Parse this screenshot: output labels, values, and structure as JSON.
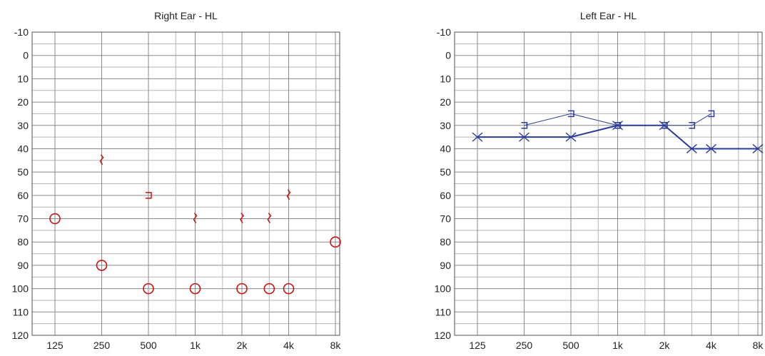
{
  "chart_data": [
    {
      "type": "scatter",
      "title": "Right Ear - HL",
      "xlabel": "",
      "ylabel": "",
      "x_categories": [
        "125",
        "250",
        "500",
        "1k",
        "2k",
        "4k",
        "8k"
      ],
      "y_ticks": [
        -10,
        0,
        10,
        20,
        30,
        40,
        50,
        60,
        70,
        80,
        90,
        100,
        110,
        120
      ],
      "ylim": [
        -10,
        120
      ],
      "y_inverted": true,
      "grid": true,
      "line_color": "#cc1111",
      "series": [
        {
          "marker": "circle",
          "points": [
            {
              "f": 125,
              "db": 70
            },
            {
              "f": 250,
              "db": 90
            },
            {
              "f": 500,
              "db": 100
            },
            {
              "f": 1000,
              "db": 100
            },
            {
              "f": 2000,
              "db": 100
            },
            {
              "f": 3000,
              "db": 100
            },
            {
              "f": 4000,
              "db": 100
            },
            {
              "f": 8000,
              "db": 80
            }
          ]
        },
        {
          "marker": "bone-bracket",
          "points": [
            {
              "f": 500,
              "db": 60
            }
          ]
        },
        {
          "marker": "bone-squiggle",
          "points": [
            {
              "f": 250,
              "db": 45
            },
            {
              "f": 1000,
              "db": 70
            },
            {
              "f": 2000,
              "db": 70
            },
            {
              "f": 3000,
              "db": 70
            },
            {
              "f": 4000,
              "db": 60
            }
          ]
        }
      ]
    },
    {
      "type": "line",
      "title": "Left Ear - HL",
      "xlabel": "",
      "ylabel": "",
      "x_categories": [
        "125",
        "250",
        "500",
        "1k",
        "2k",
        "4k",
        "8k"
      ],
      "y_ticks": [
        -10,
        0,
        10,
        20,
        30,
        40,
        50,
        60,
        70,
        80,
        90,
        100,
        110,
        120
      ],
      "ylim": [
        -10,
        120
      ],
      "y_inverted": true,
      "grid": true,
      "line_color": "#2a3a9a",
      "series": [
        {
          "marker": "x",
          "connected": true,
          "points": [
            {
              "f": 125,
              "db": 35
            },
            {
              "f": 250,
              "db": 35
            },
            {
              "f": 500,
              "db": 35
            },
            {
              "f": 1000,
              "db": 30
            },
            {
              "f": 2000,
              "db": 30
            },
            {
              "f": 3000,
              "db": 40
            },
            {
              "f": 4000,
              "db": 40
            },
            {
              "f": 8000,
              "db": 40
            }
          ]
        },
        {
          "marker": "bone-bracket",
          "connected": true,
          "points": [
            {
              "f": 250,
              "db": 30
            },
            {
              "f": 500,
              "db": 25
            },
            {
              "f": 1000,
              "db": 30
            },
            {
              "f": 2000,
              "db": 30
            },
            {
              "f": 3000,
              "db": 30
            },
            {
              "f": 4000,
              "db": 25
            }
          ]
        }
      ]
    }
  ]
}
